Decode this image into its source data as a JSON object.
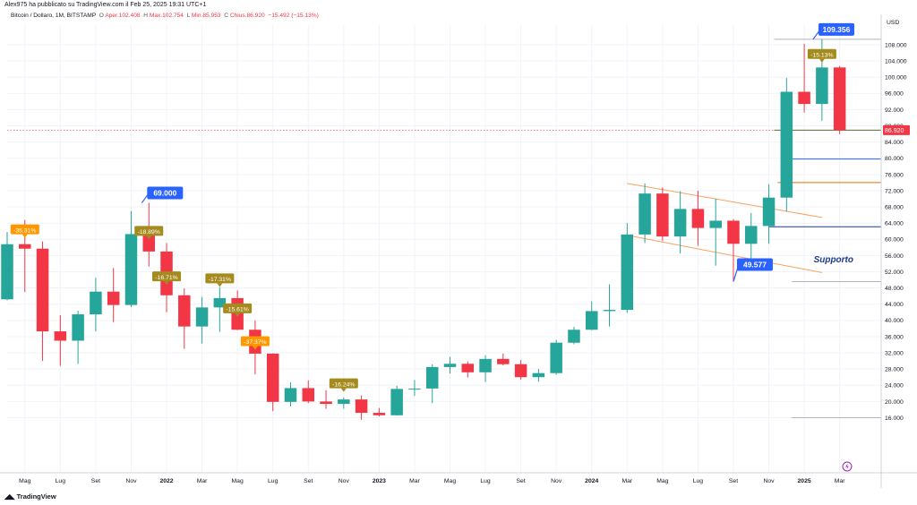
{
  "publisher": "Alex975 ha pubblicato su TradingView.com il Feb 25, 2025 19:31 UTC+1",
  "legend": {
    "symbol": "Bitcoin / Dollaro, 1M, BITSTAMP",
    "open_label": "O",
    "open": "Aper.102.408",
    "high_label": "H",
    "high": "Max.102.754",
    "low_label": "L",
    "low": "Min.85.953",
    "close_label": "C",
    "close": "Chius.86.920",
    "change": "−15.492 (−15.13%)"
  },
  "brand": "TradingView",
  "colors": {
    "up": "#26a69a",
    "down": "#f23645",
    "callout_blue": "#2962ff",
    "callout_gold": "#a58a1e",
    "callout_orange": "#ff9800",
    "channel": "#f5a25d",
    "support": "#1e3a8a"
  },
  "chart_data": {
    "type": "candlestick",
    "currency": "USD",
    "interval": "1M",
    "ylim": [
      14000,
      114000
    ],
    "y_ticks": [
      "108.000",
      "104.000",
      "100.000",
      "96.000",
      "92.000",
      "88.000",
      "84.000",
      "80.000",
      "76.000",
      "72.000",
      "68.000",
      "64.000",
      "60.000",
      "56.000",
      "52.000",
      "48.000",
      "44.000",
      "40.000",
      "36.000",
      "32.000",
      "28.000",
      "24.000",
      "20.000",
      "16.000"
    ],
    "x_ticks": [
      {
        "label": "Mag",
        "i": 1
      },
      {
        "label": "Lug",
        "i": 3
      },
      {
        "label": "Set",
        "i": 5
      },
      {
        "label": "Nov",
        "i": 7
      },
      {
        "label": "2022",
        "i": 9
      },
      {
        "label": "Mar",
        "i": 11
      },
      {
        "label": "Mag",
        "i": 13
      },
      {
        "label": "Lug",
        "i": 15
      },
      {
        "label": "Set",
        "i": 17
      },
      {
        "label": "Nov",
        "i": 19
      },
      {
        "label": "2023",
        "i": 21
      },
      {
        "label": "Mar",
        "i": 23
      },
      {
        "label": "Mag",
        "i": 25
      },
      {
        "label": "Lug",
        "i": 27
      },
      {
        "label": "Set",
        "i": 29
      },
      {
        "label": "Nov",
        "i": 31
      },
      {
        "label": "2024",
        "i": 33
      },
      {
        "label": "Mar",
        "i": 35
      },
      {
        "label": "Mag",
        "i": 37
      },
      {
        "label": "Lug",
        "i": 39
      },
      {
        "label": "Set",
        "i": 41
      },
      {
        "label": "Nov",
        "i": 43
      },
      {
        "label": "2025",
        "i": 45
      },
      {
        "label": "Mar",
        "i": 47
      }
    ],
    "candles": [
      {
        "d": "2021-03",
        "o": 45200,
        "h": 61800,
        "l": 45000,
        "c": 58800
      },
      {
        "d": "2021-04",
        "o": 58800,
        "h": 64800,
        "l": 47000,
        "c": 57700
      },
      {
        "d": "2021-05",
        "o": 57700,
        "h": 59500,
        "l": 30000,
        "c": 37300
      },
      {
        "d": "2021-06",
        "o": 37300,
        "h": 41300,
        "l": 28800,
        "c": 35000
      },
      {
        "d": "2021-07",
        "o": 35000,
        "h": 42400,
        "l": 29300,
        "c": 41500
      },
      {
        "d": "2021-08",
        "o": 41500,
        "h": 50500,
        "l": 37300,
        "c": 47100
      },
      {
        "d": "2021-09",
        "o": 47100,
        "h": 52900,
        "l": 39600,
        "c": 43800
      },
      {
        "d": "2021-10",
        "o": 43800,
        "h": 67000,
        "l": 43300,
        "c": 61300
      },
      {
        "d": "2021-11",
        "o": 61300,
        "h": 69000,
        "l": 53300,
        "c": 57000
      },
      {
        "d": "2021-12",
        "o": 57000,
        "h": 59100,
        "l": 42000,
        "c": 46200
      },
      {
        "d": "2022-01",
        "o": 46200,
        "h": 47900,
        "l": 33000,
        "c": 38500
      },
      {
        "d": "2022-02",
        "o": 38500,
        "h": 45800,
        "l": 34300,
        "c": 43200
      },
      {
        "d": "2022-03",
        "o": 43200,
        "h": 48200,
        "l": 37200,
        "c": 45500
      },
      {
        "d": "2022-04",
        "o": 45500,
        "h": 47400,
        "l": 37600,
        "c": 37700
      },
      {
        "d": "2022-05",
        "o": 37700,
        "h": 40000,
        "l": 26700,
        "c": 31800
      },
      {
        "d": "2022-06",
        "o": 31800,
        "h": 31900,
        "l": 17600,
        "c": 19900
      },
      {
        "d": "2022-07",
        "o": 19900,
        "h": 24700,
        "l": 18800,
        "c": 23300
      },
      {
        "d": "2022-08",
        "o": 23300,
        "h": 25200,
        "l": 19600,
        "c": 20000
      },
      {
        "d": "2022-09",
        "o": 20000,
        "h": 22800,
        "l": 18200,
        "c": 19400
      },
      {
        "d": "2022-10",
        "o": 19400,
        "h": 21000,
        "l": 18200,
        "c": 20500
      },
      {
        "d": "2022-11",
        "o": 20500,
        "h": 21500,
        "l": 15500,
        "c": 17200
      },
      {
        "d": "2022-12",
        "o": 17200,
        "h": 18400,
        "l": 16300,
        "c": 16600
      },
      {
        "d": "2023-01",
        "o": 16600,
        "h": 23900,
        "l": 16500,
        "c": 23100
      },
      {
        "d": "2023-02",
        "o": 23100,
        "h": 25300,
        "l": 21400,
        "c": 23200
      },
      {
        "d": "2023-03",
        "o": 23200,
        "h": 29200,
        "l": 19600,
        "c": 28500
      },
      {
        "d": "2023-04",
        "o": 28500,
        "h": 31000,
        "l": 26900,
        "c": 29300
      },
      {
        "d": "2023-05",
        "o": 29300,
        "h": 29900,
        "l": 25900,
        "c": 27200
      },
      {
        "d": "2023-06",
        "o": 27200,
        "h": 31400,
        "l": 24800,
        "c": 30500
      },
      {
        "d": "2023-07",
        "o": 30500,
        "h": 31800,
        "l": 28900,
        "c": 29200
      },
      {
        "d": "2023-08",
        "o": 29200,
        "h": 30200,
        "l": 25400,
        "c": 26000
      },
      {
        "d": "2023-09",
        "o": 26000,
        "h": 28000,
        "l": 24900,
        "c": 27000
      },
      {
        "d": "2023-10",
        "o": 27000,
        "h": 35200,
        "l": 26600,
        "c": 34500
      },
      {
        "d": "2023-11",
        "o": 34500,
        "h": 38400,
        "l": 34100,
        "c": 37700
      },
      {
        "d": "2023-12",
        "o": 37700,
        "h": 44700,
        "l": 37600,
        "c": 42300
      },
      {
        "d": "2024-01",
        "o": 42300,
        "h": 48900,
        "l": 38500,
        "c": 42600
      },
      {
        "d": "2024-02",
        "o": 42600,
        "h": 64000,
        "l": 41900,
        "c": 61200
      },
      {
        "d": "2024-03",
        "o": 61200,
        "h": 73800,
        "l": 59100,
        "c": 71300
      },
      {
        "d": "2024-04",
        "o": 71300,
        "h": 72800,
        "l": 59600,
        "c": 60700
      },
      {
        "d": "2024-05",
        "o": 60700,
        "h": 71900,
        "l": 56500,
        "c": 67500
      },
      {
        "d": "2024-06",
        "o": 67500,
        "h": 72000,
        "l": 58400,
        "c": 62800
      },
      {
        "d": "2024-07",
        "o": 62800,
        "h": 70000,
        "l": 53500,
        "c": 64600
      },
      {
        "d": "2024-08",
        "o": 64600,
        "h": 65000,
        "l": 49577,
        "c": 58900
      },
      {
        "d": "2024-09",
        "o": 58900,
        "h": 66500,
        "l": 52500,
        "c": 63300
      },
      {
        "d": "2024-10",
        "o": 63300,
        "h": 73600,
        "l": 58900,
        "c": 70300
      },
      {
        "d": "2024-11",
        "o": 70300,
        "h": 99800,
        "l": 66800,
        "c": 96400
      },
      {
        "d": "2024-12",
        "o": 96400,
        "h": 108200,
        "l": 91300,
        "c": 93400
      },
      {
        "d": "2025-01",
        "o": 93400,
        "h": 109356,
        "l": 89200,
        "c": 102400
      },
      {
        "d": "2025-02",
        "o": 102408,
        "h": 102754,
        "l": 85953,
        "c": 86920
      }
    ],
    "callouts": [
      {
        "i": 1,
        "text": "-35.31%",
        "style": "orange",
        "side": "above",
        "price": 59500
      },
      {
        "i": 8,
        "text": "-18.89%",
        "style": "gold",
        "side": "above",
        "price": 59100
      },
      {
        "i": 9,
        "text": "-16.71%",
        "style": "gold",
        "side": "above",
        "price": 47900
      },
      {
        "i": 12,
        "text": "-17.31%",
        "style": "gold",
        "side": "above",
        "price": 47400
      },
      {
        "i": 13,
        "text": "-15.61%",
        "style": "gold",
        "side": "above",
        "price": 40000
      },
      {
        "i": 14,
        "text": "-37.37%",
        "style": "orange",
        "side": "above",
        "price": 31900
      },
      {
        "i": 19,
        "text": "-16.24%",
        "style": "gold",
        "side": "above",
        "price": 21500
      },
      {
        "i": 46,
        "text": "-15.13%",
        "style": "gold",
        "side": "above",
        "price": 102754
      }
    ],
    "price_labels": [
      {
        "text": "69.000",
        "price": 69000,
        "i": 7.6,
        "dir": "up-left"
      },
      {
        "text": "109.356",
        "price": 109356,
        "i": 45.5,
        "dir": "up-left"
      },
      {
        "text": "49.577",
        "price": 49577,
        "i": 41.0,
        "dir": "down-left"
      }
    ],
    "last_price": {
      "text": "86.920",
      "value": 86920
    },
    "levels": [
      {
        "price": 109356,
        "color": "#b2b5be",
        "from": 43.3
      },
      {
        "price": 86920,
        "color": "#2e7d32",
        "from": 43.3
      },
      {
        "price": 79800,
        "color": "#2962ff",
        "from": 44.3
      },
      {
        "price": 74000,
        "color": "#ef6c00",
        "from": 43.5
      },
      {
        "price": 63100,
        "color": "#1e3a8a",
        "from": 43.0
      },
      {
        "price": 49577,
        "color": "#b2b5be",
        "from": 44.3
      },
      {
        "price": 16000,
        "color": "#b2b5be",
        "from": 44.3
      }
    ],
    "channel": [
      {
        "from": {
          "i": 35.0,
          "p": 73800
        },
        "to": {
          "i": 46.0,
          "p": 65400
        }
      },
      {
        "from": {
          "i": 35.0,
          "p": 61000
        },
        "to": {
          "i": 46.0,
          "p": 51800
        }
      }
    ],
    "support_text": "Supporto"
  }
}
